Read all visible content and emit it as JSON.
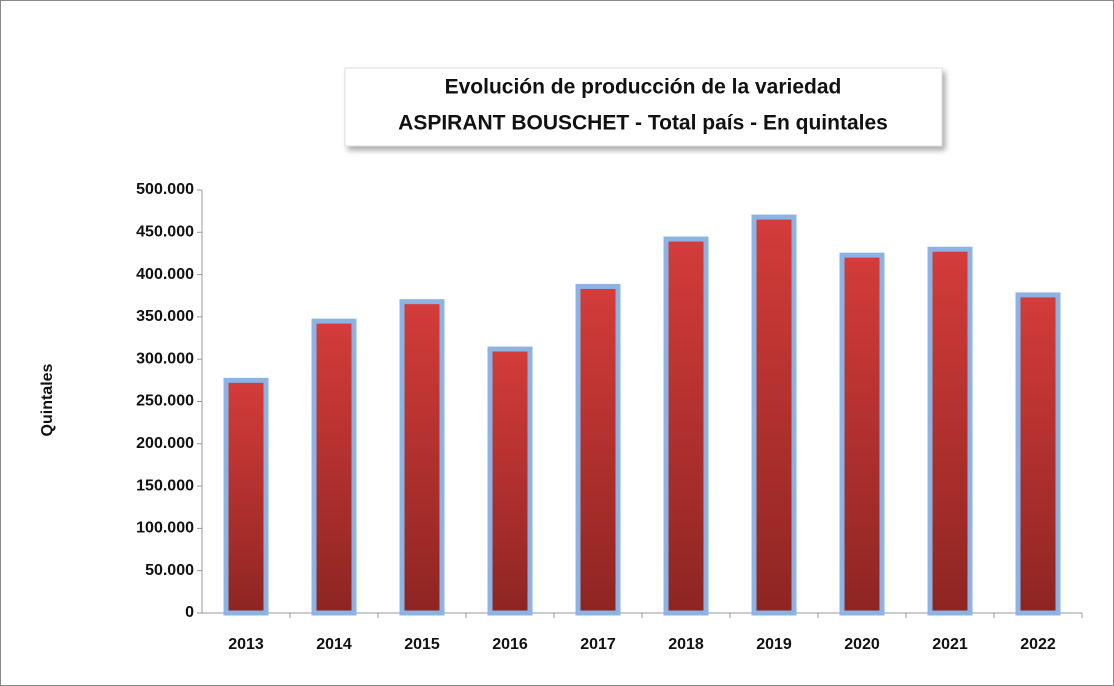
{
  "chart_data": {
    "type": "bar",
    "title": "Evolución de producción de la variedad",
    "subtitle": "ASPIRANT BOUSCHET - Total país - En quintales",
    "y_label": "Quintales",
    "categories": [
      "2013",
      "2014",
      "2015",
      "2016",
      "2017",
      "2018",
      "2019",
      "2020",
      "2021",
      "2022"
    ],
    "values": [
      275000,
      345000,
      368000,
      312000,
      386000,
      442000,
      468000,
      423000,
      430000,
      376000
    ],
    "color": "#c0392b",
    "ylim": [
      0,
      500000
    ],
    "yticks": [
      0,
      {
        "value": 50000,
        "label": "50.000"
      },
      {
        "value": 100000,
        "label": "100.000"
      },
      {
        "value": 150000,
        "label": "150.000"
      },
      {
        "value": 200000,
        "label": "200.000"
      },
      {
        "value": 250000,
        "label": "250.000"
      },
      {
        "value": 300000,
        "label": "300.000"
      },
      {
        "value": 350000,
        "label": "350.000"
      },
      {
        "value": 400000,
        "label": "400.000"
      },
      {
        "value": 450000,
        "label": "450.000"
      },
      {
        "value": 500000,
        "label": "500.000"
      }
    ]
  }
}
